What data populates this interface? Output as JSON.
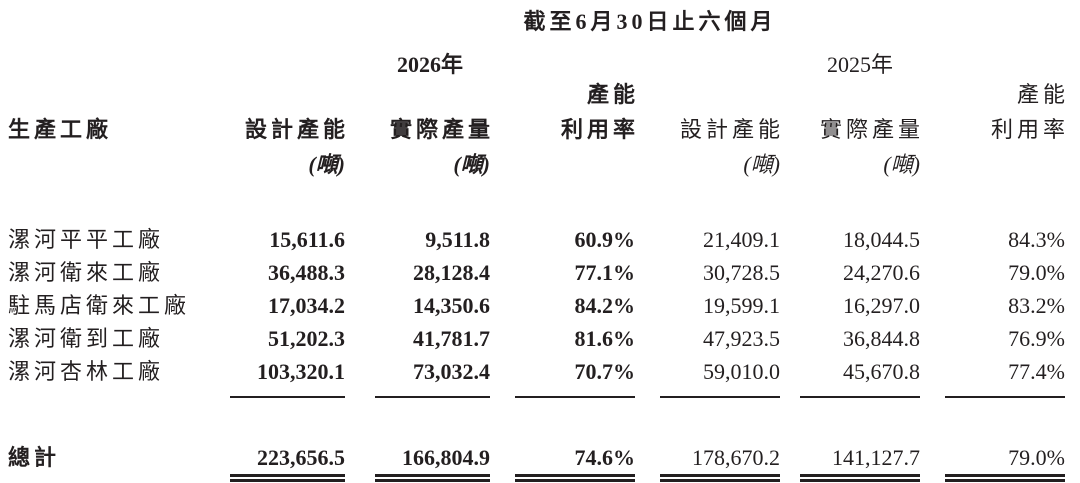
{
  "header": {
    "period": "截至6月30日止六個月",
    "year_current": "2026年",
    "year_prior": "2025年",
    "row_label": "生產工廠"
  },
  "columns": [
    {
      "lines": [
        "設計產能"
      ],
      "unit": "(噸)"
    },
    {
      "lines": [
        "實際產量"
      ],
      "unit": "(噸)"
    },
    {
      "lines": [
        "產能",
        "利用率"
      ]
    },
    {
      "lines": [
        "設計產能"
      ],
      "unit": "(噸)"
    },
    {
      "lines": [
        "實際產量"
      ],
      "unit": "(噸)"
    },
    {
      "lines": [
        "產能",
        "利用率"
      ]
    }
  ],
  "rows": [
    [
      "漯河平平工廠",
      "15,611.6",
      "9,511.8",
      "60.9%",
      "21,409.1",
      "18,044.5",
      "84.3%"
    ],
    [
      "漯河衛來工廠",
      "36,488.3",
      "28,128.4",
      "77.1%",
      "30,728.5",
      "24,270.6",
      "79.0%"
    ],
    [
      "駐馬店衛來工廠",
      "17,034.2",
      "14,350.6",
      "84.2%",
      "19,599.1",
      "16,297.0",
      "83.2%"
    ],
    [
      "漯河衛到工廠",
      "51,202.3",
      "41,781.7",
      "81.6%",
      "47,923.5",
      "36,844.8",
      "76.9%"
    ],
    [
      "漯河杏林工廠",
      "103,320.1",
      "73,032.4",
      "70.7%",
      "59,010.0",
      "45,670.8",
      "77.4%"
    ]
  ],
  "total": [
    "總計",
    "223,656.5",
    "166,804.9",
    "74.6%",
    "178,670.2",
    "141,127.7",
    "79.0%"
  ]
}
